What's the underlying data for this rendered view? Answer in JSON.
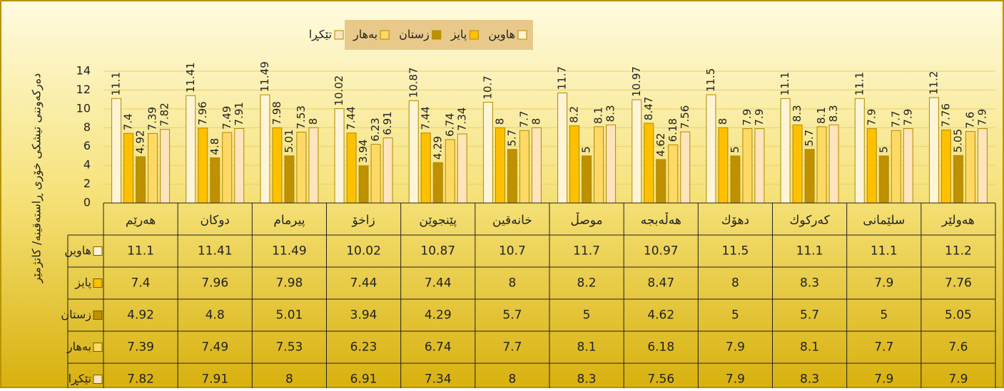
{
  "chart_data": {
    "type": "bar",
    "y_label": "دەرکەوتنی تیشکی خۆری ڕاستەقینە/ کاتژمێر",
    "categories": [
      "هەرێم",
      "دوکان",
      "پیرمام",
      "زاخۆ",
      "پێنجوێن",
      "خانەقین",
      "موصڵ",
      "هەڵەبجە",
      "دهۆك",
      "کەرکوك",
      "سلێمانی",
      "هەولێر"
    ],
    "series": [
      {
        "name": "هاوین",
        "color": "#fff5d6",
        "values": [
          11.1,
          11.41,
          11.49,
          10.02,
          10.87,
          10.7,
          11.7,
          10.97,
          11.5,
          11.1,
          11.1,
          11.2
        ]
      },
      {
        "name": "پایز",
        "color": "#ffc000",
        "values": [
          7.4,
          7.96,
          7.98,
          7.44,
          7.44,
          8,
          8.2,
          8.47,
          8,
          8.3,
          7.9,
          7.76
        ]
      },
      {
        "name": "زستان",
        "color": "#bf9000",
        "values": [
          4.92,
          4.8,
          5.01,
          3.94,
          4.29,
          5.7,
          5,
          4.62,
          5,
          5.7,
          5,
          5.05
        ]
      },
      {
        "name": "بەهار",
        "color": "#ffd966",
        "values": [
          7.39,
          7.49,
          7.53,
          6.23,
          6.74,
          7.7,
          8.1,
          6.18,
          7.9,
          8.1,
          7.7,
          7.6
        ]
      },
      {
        "name": "تێکڕا",
        "color": "#ffe4bc",
        "values": [
          7.82,
          7.91,
          8,
          6.91,
          7.34,
          8,
          8.3,
          7.56,
          7.9,
          8.3,
          7.9,
          7.9
        ]
      }
    ],
    "ylim": [
      0,
      14
    ],
    "yticks": [
      0,
      2,
      4,
      6,
      8,
      10,
      12,
      14
    ],
    "grid": true,
    "legend": "top"
  }
}
